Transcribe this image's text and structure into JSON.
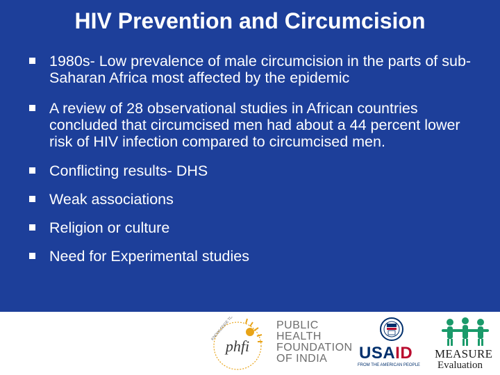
{
  "slide": {
    "title": "HIV Prevention and Circumcision",
    "bullets": [
      "1980s- Low prevalence of male circumcision in the parts of sub-Saharan Africa most affected by the epidemic",
      "A review of 28 observational studies in African countries concluded that circumcised men had about a 44 percent lower risk of HIV infection compared to circumcised men.",
      "Conflicting results- DHS",
      "Weak associations",
      "Religion or culture",
      "Need for Experimental studies"
    ]
  },
  "footer": {
    "phfi": {
      "seal_text": "phfi",
      "seal_ring_text": "KNOWLEDGE TO ACTION",
      "name_lines": [
        "PUBLIC",
        "HEALTH",
        "FOUNDATION",
        "OF INDIA"
      ]
    },
    "usaid": {
      "word_blue": "USA",
      "word_red": "ID",
      "tagline": "FROM THE AMERICAN PEOPLE"
    },
    "measure": {
      "word": "MEASURE",
      "subtitle": "Evaluation"
    }
  },
  "colors": {
    "background": "#1d3f9a",
    "text": "#ffffff",
    "phfi_accent": "#e8a317",
    "usaid_blue": "#002f6c",
    "usaid_red": "#ba0c2f",
    "measure_green": "#1a9a6a"
  }
}
